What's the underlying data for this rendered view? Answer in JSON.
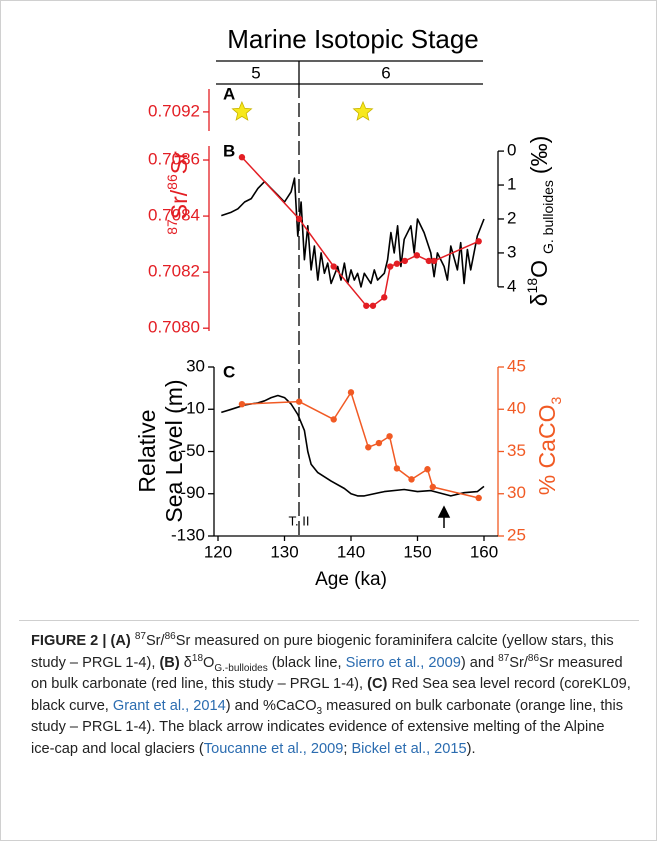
{
  "header": {
    "title": "Marine Isotopic Stage",
    "stages": [
      "5",
      "6"
    ]
  },
  "chart_data": [
    {
      "type": "scatter",
      "label": "A",
      "xlim": [
        120,
        160
      ],
      "ylim": [
        0.70918,
        0.709224
      ],
      "yticks": [
        0.7092
      ],
      "ycolor": "#e31e24",
      "x": [
        123.6,
        141.8
      ],
      "values": [
        0.7092,
        0.7092
      ],
      "color": "#f7e81c",
      "ylabel": [
        "87",
        "Sr/",
        "86",
        "Sr"
      ]
    },
    {
      "type": "line",
      "label": "B",
      "xlim": [
        120,
        160
      ],
      "ylim": [
        0.70799,
        0.70865
      ],
      "yticks": [
        {
          "value": 0.708,
          "label": "0.7080"
        },
        0.7082,
        0.7084,
        0.7086
      ],
      "ycolor": "#e31e24",
      "y2lim": [
        5.3,
        -0.15
      ],
      "y2ticks": [
        0,
        1,
        2,
        3,
        4
      ],
      "y2color": "#000000",
      "y2label": [
        "δ",
        "18",
        "O",
        "G. bulloides",
        "(‰)"
      ],
      "series": [
        {
          "color": "#000000",
          "axis": "y2",
          "marker": false,
          "x": [
            120.5,
            122,
            123,
            124,
            125,
            126,
            127,
            128,
            129,
            130,
            131,
            131.5,
            132,
            132.5,
            133,
            133.5,
            134,
            134.5,
            135,
            135.5,
            136,
            136.5,
            137,
            138,
            138.5,
            139,
            139.5,
            140,
            140.5,
            141,
            141.5,
            142,
            143,
            143.5,
            144,
            145,
            145.5,
            146,
            146.5,
            147,
            147.5,
            148,
            149,
            149.5,
            150,
            151,
            152,
            152.5,
            153,
            154,
            154.5,
            155,
            156,
            156.5,
            157,
            157.5,
            158,
            159,
            160
          ],
          "values": [
            1.9,
            1.8,
            1.7,
            1.5,
            1.4,
            1.1,
            0.9,
            1.1,
            1.3,
            1.5,
            1.2,
            0.8,
            2.5,
            1.5,
            3.2,
            2.2,
            3.5,
            2.8,
            3.8,
            3.0,
            3.6,
            3.3,
            3.9,
            3.4,
            3.8,
            3.3,
            3.9,
            3.5,
            3.8,
            3.6,
            4.0,
            3.6,
            3.9,
            3.5,
            3.8,
            3.6,
            3.2,
            2.4,
            3.0,
            2.2,
            3.4,
            2.6,
            2.2,
            3.0,
            2.0,
            2.4,
            3.0,
            3.7,
            3.0,
            3.4,
            3.8,
            2.8,
            3.5,
            2.7,
            3.9,
            2.9,
            3.5,
            2.5,
            2.0
          ]
        },
        {
          "color": "#e31e24",
          "marker": true,
          "x": [
            123.6,
            132.2,
            137.4,
            142.3,
            143.3,
            145.0,
            145.9,
            146.9,
            148.1,
            149.9,
            151.7,
            152.5,
            159.2
          ],
          "values": [
            0.70861,
            0.70839,
            0.70822,
            0.70808,
            0.70808,
            0.70811,
            0.70822,
            0.70823,
            0.70824,
            0.70826,
            0.70824,
            0.70824,
            0.70831
          ]
        }
      ]
    },
    {
      "type": "line",
      "label": "C",
      "xlim": [
        120,
        160
      ],
      "xticks": [
        120,
        130,
        140,
        150,
        160
      ],
      "xlabel": "Age (ka)",
      "ylim": [
        -130,
        30
      ],
      "yticks": [
        30,
        -10,
        -50,
        -90,
        -130
      ],
      "ycolor": "#000000",
      "ylabel": [
        "Relative",
        "Sea Level (m)"
      ],
      "y2lim": [
        25,
        45
      ],
      "y2ticks": [
        45,
        40,
        35,
        30,
        25
      ],
      "y2color": "#f15a24",
      "y2label": [
        "% CaCO",
        "3"
      ],
      "annotation": "T. II",
      "series": [
        {
          "color": "#000000",
          "marker": false,
          "x": [
            120.5,
            122,
            124,
            126,
            127,
            128,
            129,
            130,
            131,
            132,
            133,
            133.5,
            134,
            135,
            137,
            139,
            140,
            141,
            142,
            145,
            148,
            150,
            152,
            155,
            157,
            159,
            160
          ],
          "values": [
            -13,
            -10,
            -6,
            -4,
            -2,
            1,
            3,
            1,
            -5,
            -15,
            -30,
            -50,
            -62,
            -70,
            -78,
            -85,
            -90,
            -92,
            -92,
            -88,
            -86,
            -88,
            -87,
            -92,
            -89,
            -88,
            -83
          ]
        },
        {
          "color": "#f15a24",
          "axis": "y2",
          "marker": true,
          "x": [
            123.6,
            132.2,
            137.4,
            140,
            142.6,
            144.2,
            145.8,
            146.9,
            149.1,
            151.5,
            152.3,
            159.2
          ],
          "values": [
            40.6,
            40.9,
            38.8,
            42.0,
            35.5,
            36.0,
            36.8,
            33.0,
            31.7,
            32.9,
            30.8,
            29.5
          ]
        }
      ]
    }
  ],
  "caption": {
    "parts": [
      "FIGURE 2 | (A) ",
      "87",
      "Sr/",
      "86",
      "Sr measured on pure biogenic foraminifera calcite (yellow stars, this study – PRGL 1-4), ",
      "(B) ",
      "δ",
      "18",
      "O",
      "G.-bulloides",
      " (black line, ",
      "Sierro et al., 2009",
      ") and ",
      "87",
      "Sr/",
      "86",
      "Sr measured on bulk carbonate (red line, this study – PRGL 1-4), ",
      "(C) ",
      "Red Sea sea level record (coreKL09, black curve, ",
      "Grant et al., 2014",
      ") and %CaCO",
      "3",
      " measured on bulk carbonate (orange line, this study – PRGL 1-4). The black arrow indicates evidence of extensive melting of the Alpine ice-cap and local glaciers (",
      "Toucanne et al., 2009",
      "; ",
      "Bickel et al., 2015",
      ")."
    ]
  }
}
